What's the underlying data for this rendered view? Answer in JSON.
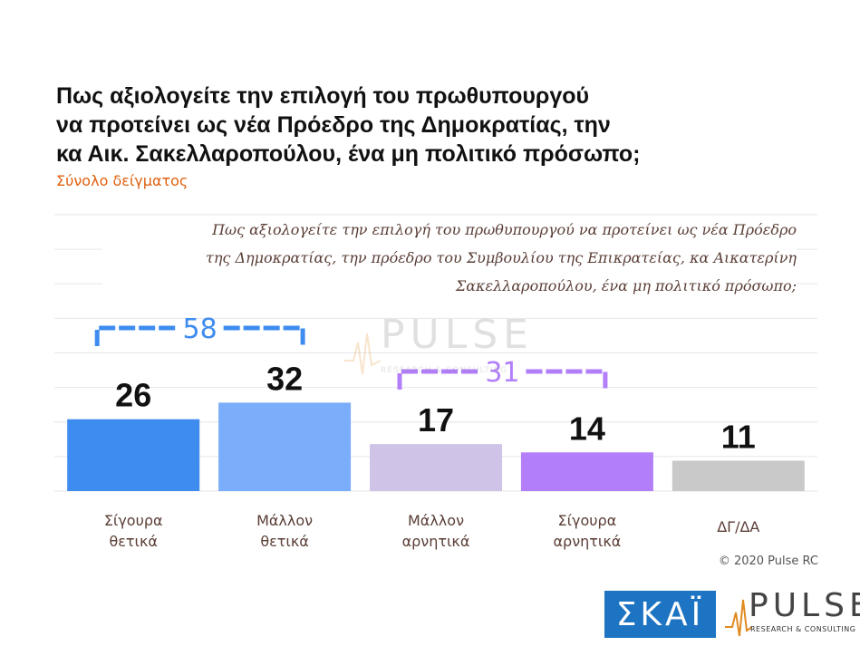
{
  "title_lines": [
    "Πως αξιολογείτε την επιλογή του πρωθυπουργού",
    "να προτείνει ως νέα Πρόεδρο της Δημοκρατίας, την",
    "κα Αικ. Σακελλαροπούλου, ένα μη πολιτικό πρόσωπο;"
  ],
  "subtitle": "Σύνολο δείγματος",
  "question_lines": [
    "Πως αξιολογείτε την επιλογή του πρωθυπουργού να προτείνει ως νέα Πρόεδρο",
    "της Δημοκρατίας, την πρόεδρο του Συμβουλίου της Επικρατείας, κα Αικατερίνη",
    "Σακελλαροπούλου, ένα μη πολιτικό πρόσωπο;"
  ],
  "copyright": "© 2020 Pulse RC",
  "logos": {
    "skai": "ΣΚΑΪ",
    "pulse": "PULSE",
    "pulse_tagline": "RESEARCH & CONSULTING"
  },
  "watermark": {
    "word": "PULSE",
    "tagline": "RESEARCH & CONSULTING"
  },
  "chart_data": {
    "type": "bar",
    "categories": [
      [
        "Σίγουρα",
        "θετικά"
      ],
      [
        "Μάλλον",
        "θετικά"
      ],
      [
        "Μάλλον",
        "αρνητικά"
      ],
      [
        "Σίγουρα",
        "αρνητικά"
      ],
      [
        "ΔΓ/ΔΑ"
      ]
    ],
    "values": [
      26,
      32,
      17,
      14,
      11
    ],
    "colors": [
      "#3f8cf0",
      "#7aaefa",
      "#cfc3e8",
      "#b27ef9",
      "#c9c9c9"
    ],
    "ylim": [
      0,
      100
    ],
    "grid": true,
    "brackets": [
      {
        "label": "58",
        "from": 0,
        "to": 1,
        "color": "#3f8cf0"
      },
      {
        "label": "31",
        "from": 2,
        "to": 3,
        "color": "#b27ef9"
      }
    ]
  }
}
